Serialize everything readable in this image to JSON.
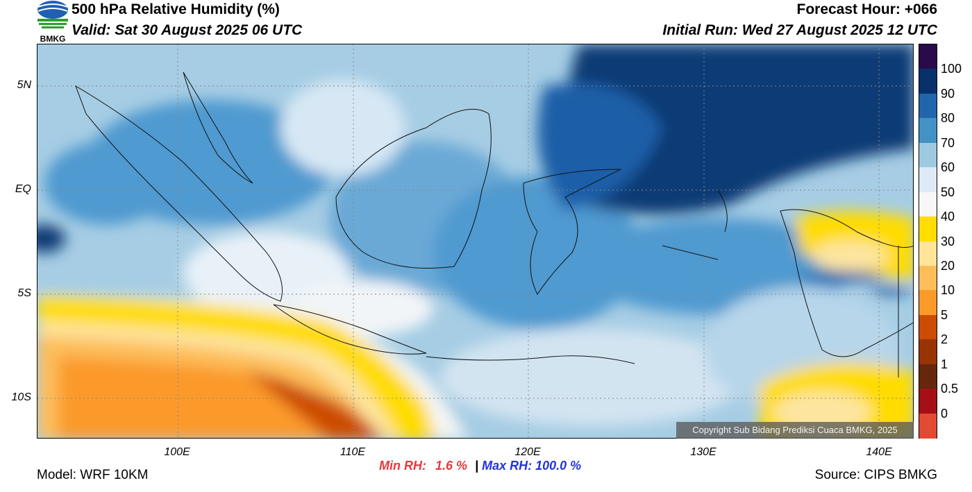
{
  "header": {
    "title": "500 hPa Relative Humidity (%)",
    "valid": "Valid: Sat 30 August 2025 06 UTC",
    "forecast_hour": "Forecast Hour: +066",
    "initial_run": "Initial Run: Wed 27 August 2025 12 UTC",
    "logo_text": "BMKG"
  },
  "axes": {
    "lat_labels": [
      "5N",
      "EQ",
      "5S",
      "10S"
    ],
    "lon_labels": [
      "100E",
      "110E",
      "120E",
      "130E",
      "140E"
    ]
  },
  "colorbar": {
    "labels": [
      "100",
      "90",
      "80",
      "70",
      "60",
      "50",
      "40",
      "30",
      "20",
      "10",
      "5",
      "2",
      "1",
      "0.5",
      "0"
    ],
    "colors": [
      "#2a0a4a",
      "#08306b",
      "#2166ac",
      "#4292c6",
      "#9ecae1",
      "#deebf7",
      "#f7f7f7",
      "#ffdd00",
      "#ffe49a",
      "#fdbe5a",
      "#fb9a29",
      "#cc4c02",
      "#993404",
      "#66270c",
      "#a50f15",
      "#e34a33"
    ]
  },
  "stats": {
    "min_label": "Min RH:",
    "min_value": "1.6 %",
    "separator": "|",
    "max_label": "Max RH:",
    "max_value": "100.0 %"
  },
  "footer": {
    "model": "Model: WRF 10KM",
    "source": "Source: CIPS BMKG",
    "copyright": "Copyright Sub Bidang Prediksi Cuaca BMKG, 2025"
  }
}
